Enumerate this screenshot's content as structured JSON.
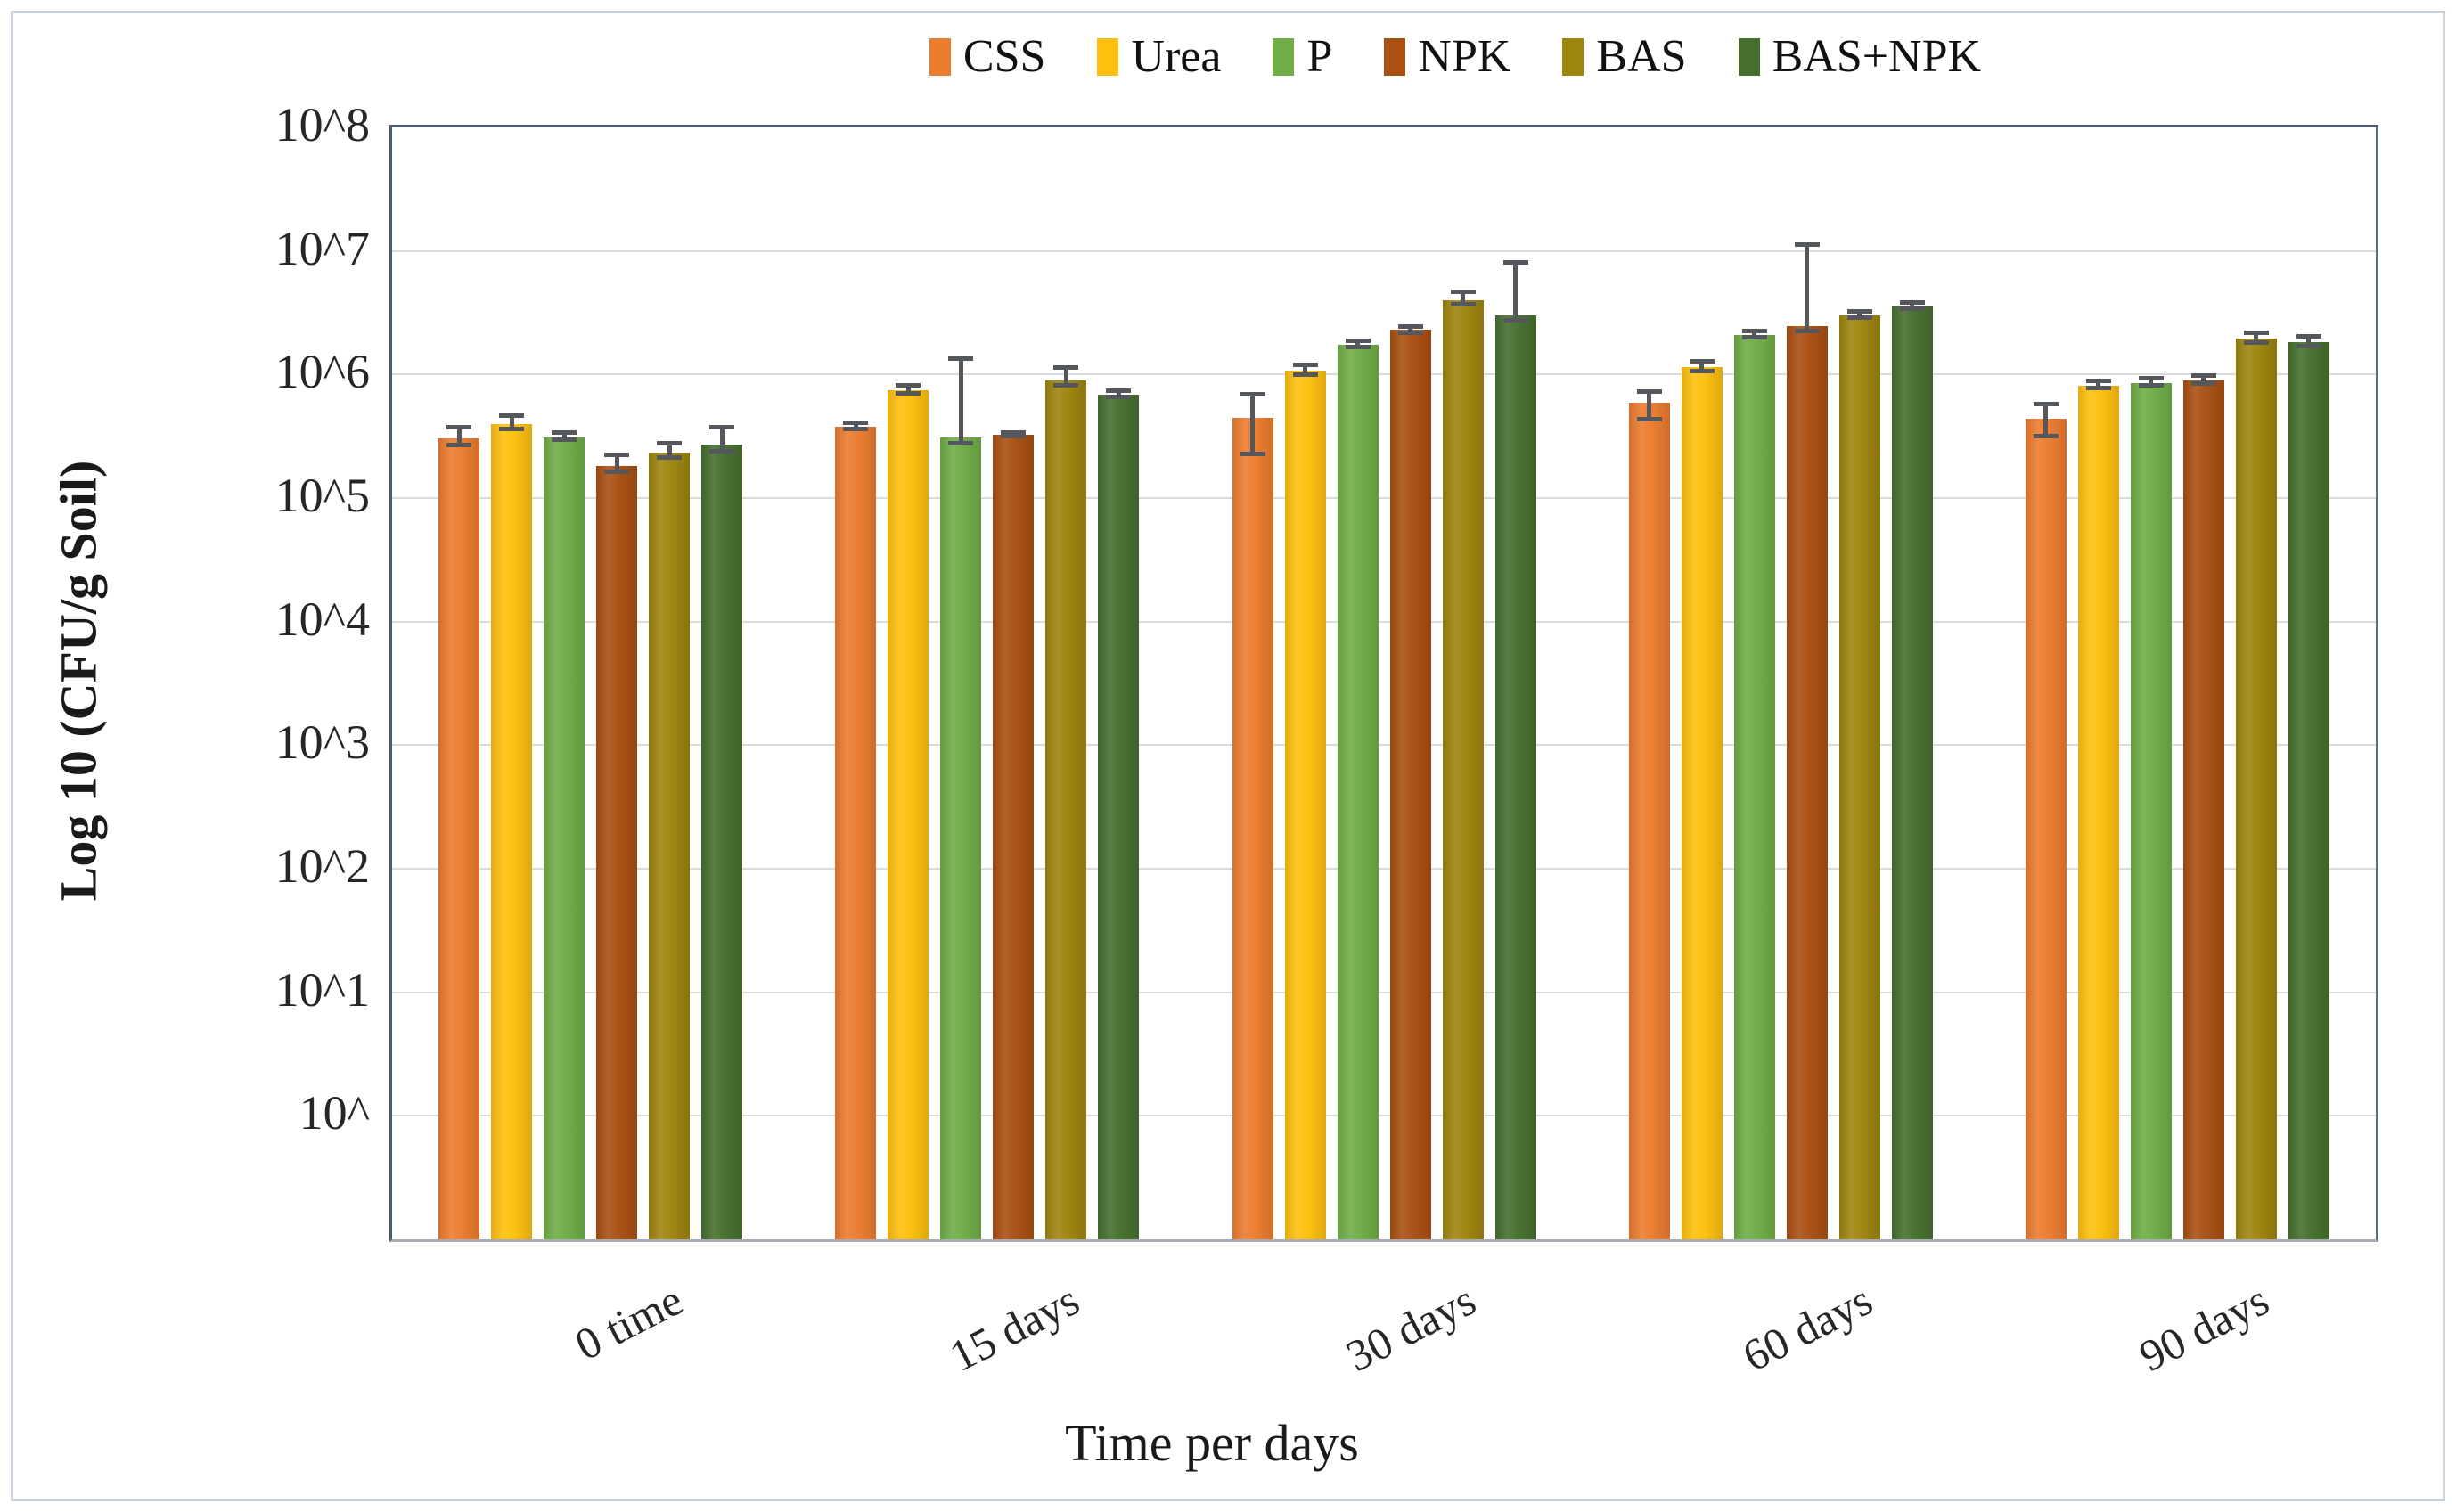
{
  "figure": {
    "background": "#ffffff",
    "outer_border_color": "#c9d1da",
    "plot_border_color": "#4a5a74",
    "axis_line_color": "#a8adb4",
    "gridline_color": "#dbdbdb",
    "error_bar_color": "#54575b"
  },
  "legend": {
    "position": "top-center",
    "entries": [
      {
        "label": "CSS",
        "color": "#ec7c30"
      },
      {
        "label": "Urea",
        "color": "#fec00f"
      },
      {
        "label": "P",
        "color": "#70ad47"
      },
      {
        "label": "NPK",
        "color": "#aa5013"
      },
      {
        "label": "BAS",
        "color": "#9e850e"
      },
      {
        "label": "BAS+NPK",
        "color": "#477030"
      }
    ]
  },
  "y_axis": {
    "title": "Log 10 (CFU/g Soil)",
    "tick_labels": [
      "10^8",
      "10^7",
      "10^6",
      "10^5",
      "10^4",
      "10^3",
      "10^2",
      "10^1",
      "10^"
    ]
  },
  "x_axis": {
    "title": "Time per days",
    "categories": [
      "0 time",
      "15 days",
      "30 days",
      "60 days",
      "90 days"
    ]
  },
  "chart_data": {
    "type": "bar",
    "scale": "log10",
    "title": "",
    "xlabel": "Time per days",
    "ylabel": "Log 10 (CFU/g Soil)",
    "categories": [
      "0 time",
      "15 days",
      "30 days",
      "60 days",
      "90 days"
    ],
    "ylim_log10": [
      -1,
      8
    ],
    "gridline_exponents": [
      0,
      1,
      2,
      3,
      4,
      5,
      6,
      7,
      8
    ],
    "grid": true,
    "legend_position": "top",
    "series": [
      {
        "name": "CSS",
        "color": "#ec7c30",
        "values_log10": [
          5.48,
          5.58,
          5.65,
          5.77,
          5.64
        ],
        "err_up_log10": [
          0.09,
          0.03,
          0.19,
          0.09,
          0.12
        ],
        "err_down_log10": [
          0.05,
          0.02,
          0.29,
          0.13,
          0.14
        ]
      },
      {
        "name": "Urea",
        "color": "#fec00f",
        "values_log10": [
          5.6,
          5.87,
          6.03,
          6.06,
          5.91
        ],
        "err_up_log10": [
          0.07,
          0.04,
          0.05,
          0.05,
          0.04
        ],
        "err_down_log10": [
          0.04,
          0.02,
          0.03,
          0.03,
          0.02
        ]
      },
      {
        "name": "P",
        "color": "#70ad47",
        "values_log10": [
          5.49,
          5.49,
          6.24,
          6.32,
          5.93
        ],
        "err_up_log10": [
          0.04,
          0.64,
          0.03,
          0.03,
          0.04
        ],
        "err_down_log10": [
          0.02,
          0.05,
          0.02,
          0.02,
          0.02
        ]
      },
      {
        "name": "NPK",
        "color": "#aa5013",
        "values_log10": [
          5.26,
          5.51,
          6.36,
          6.39,
          5.95
        ],
        "err_up_log10": [
          0.09,
          0.02,
          0.03,
          0.66,
          0.04
        ],
        "err_down_log10": [
          0.05,
          0.01,
          0.02,
          0.04,
          0.02
        ]
      },
      {
        "name": "BAS",
        "color": "#9e850e",
        "values_log10": [
          5.37,
          5.95,
          6.6,
          6.48,
          6.29
        ],
        "err_up_log10": [
          0.07,
          0.11,
          0.07,
          0.03,
          0.05
        ],
        "err_down_log10": [
          0.04,
          0.04,
          0.03,
          0.02,
          0.03
        ]
      },
      {
        "name": "BAS+NPK",
        "color": "#477030",
        "values_log10": [
          5.43,
          5.84,
          6.48,
          6.55,
          6.26
        ],
        "err_up_log10": [
          0.14,
          0.03,
          0.43,
          0.03,
          0.05
        ],
        "err_down_log10": [
          0.05,
          0.02,
          0.04,
          0.02,
          0.03
        ]
      }
    ]
  }
}
